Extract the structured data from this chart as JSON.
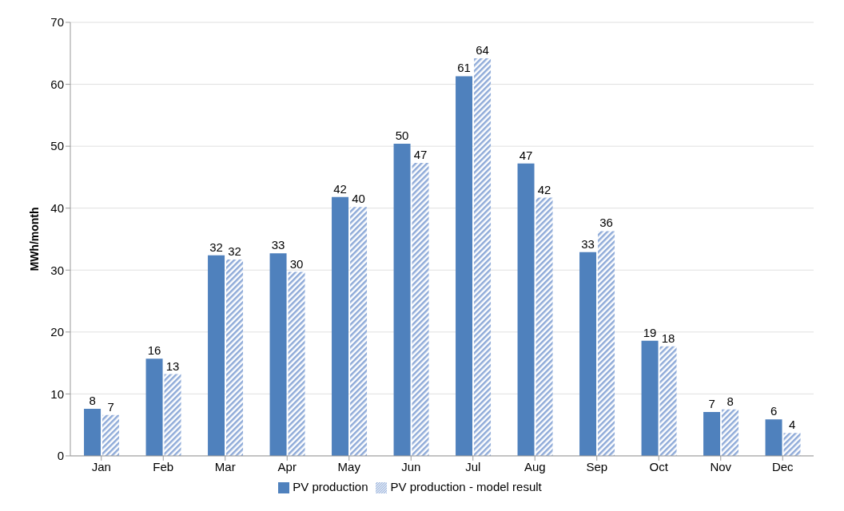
{
  "chart_data": {
    "type": "bar",
    "ylabel": "MWh/month",
    "categories": [
      "Jan",
      "Feb",
      "Mar",
      "Apr",
      "May",
      "Jun",
      "Jul",
      "Aug",
      "Sep",
      "Oct",
      "Nov",
      "Dec"
    ],
    "series": [
      {
        "name": "PV production",
        "color": "#4f81bd",
        "values": [
          7.6,
          15.7,
          32.4,
          32.7,
          41.8,
          50.4,
          61.3,
          47.2,
          32.9,
          18.6,
          7.1,
          5.9
        ],
        "value_labels": [
          "8",
          "16",
          "32",
          "33",
          "42",
          "50",
          "61",
          "47",
          "33",
          "19",
          "7",
          "6"
        ]
      },
      {
        "name": "PV production - model result",
        "color": "#8eaad8",
        "values": [
          6.6,
          13.2,
          31.7,
          29.7,
          40.2,
          47.3,
          64.2,
          41.7,
          36.3,
          17.7,
          7.5,
          3.7
        ],
        "value_labels": [
          "7",
          "13",
          "32",
          "30",
          "40",
          "47",
          "64",
          "42",
          "36",
          "18",
          "8",
          "4"
        ]
      }
    ],
    "ylim": [
      0,
      70
    ],
    "yticks": [
      0,
      10,
      20,
      30,
      40,
      50,
      60,
      70
    ],
    "grid": "y",
    "legend": "bottom"
  }
}
